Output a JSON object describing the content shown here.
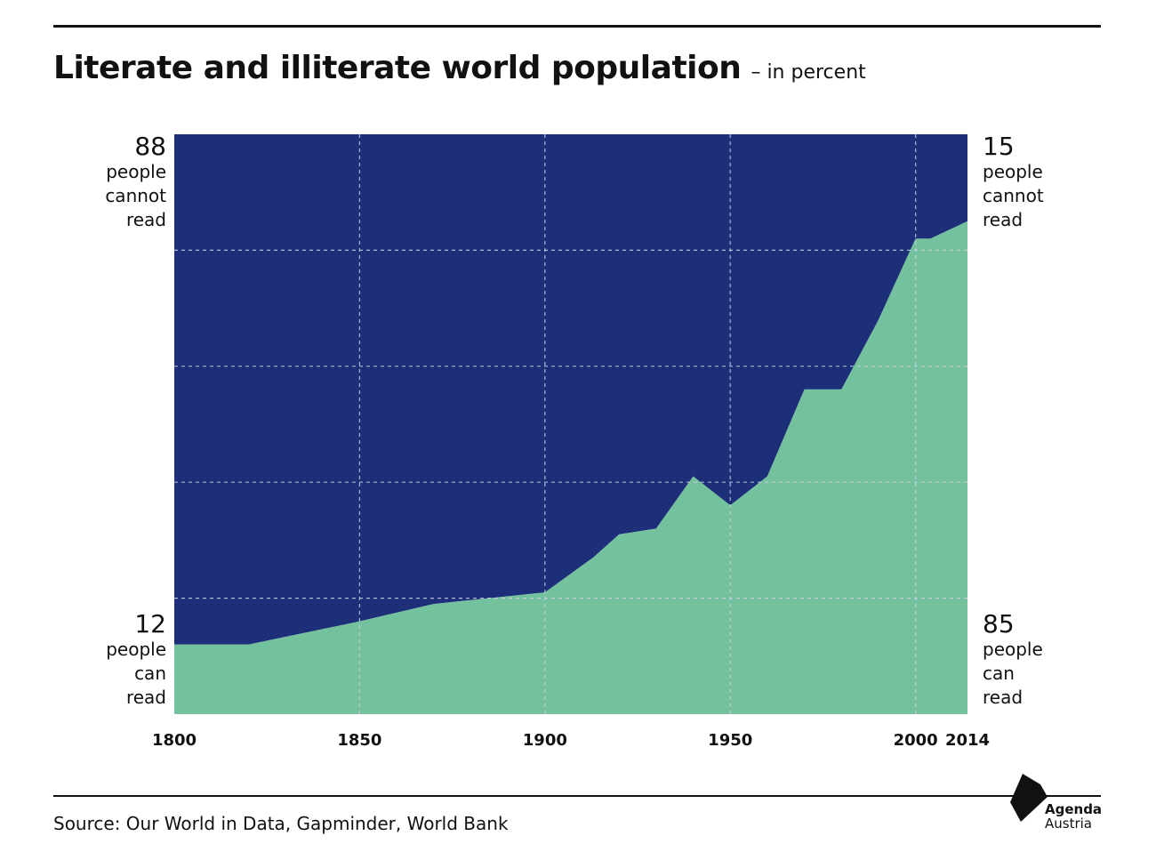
{
  "header": {
    "title": "Literate and illiterate world population",
    "subtitle": "– in percent"
  },
  "labels": {
    "left_top": {
      "value": "88",
      "line1": "people",
      "line2": "cannot",
      "line3": "read"
    },
    "left_bottom": {
      "value": "12",
      "line1": "people",
      "line2": "can",
      "line3": "read"
    },
    "right_top": {
      "value": "15",
      "line1": "people",
      "line2": "cannot",
      "line3": "read"
    },
    "right_bottom": {
      "value": "85",
      "line1": "people",
      "line2": "can",
      "line3": "read"
    }
  },
  "footer": {
    "source": "Source: Our World in Data, Gapminder, World Bank",
    "logo_line1": "Agenda",
    "logo_line2": "Austria"
  },
  "colors": {
    "illiterate": "#1e2f7a",
    "literate": "#74c19d",
    "grid": "#c9cfe0"
  },
  "chart_data": {
    "type": "area",
    "title": "Literate and illiterate world population",
    "subtitle": "– in percent",
    "xlim": [
      1800,
      2014
    ],
    "ylim": [
      0,
      100
    ],
    "x_ticks": [
      1800,
      1850,
      1900,
      1950,
      2000,
      2014
    ],
    "grid": true,
    "series": [
      {
        "x": [
          1800,
          1820,
          1850,
          1870,
          1900,
          1913,
          1920,
          1930,
          1940,
          1950,
          1960,
          1970,
          1980,
          1990,
          2000,
          2004,
          2014
        ],
        "values": [
          12,
          12,
          16,
          19,
          21,
          27,
          31,
          32,
          41,
          36,
          41,
          56,
          56,
          68,
          82,
          82,
          85
        ]
      },
      {
        "x": [
          1800,
          1820,
          1850,
          1870,
          1900,
          1913,
          1920,
          1930,
          1940,
          1950,
          1960,
          1970,
          1980,
          1990,
          2000,
          2004,
          2014
        ],
        "values": [
          88,
          88,
          84,
          81,
          79,
          73,
          69,
          68,
          59,
          64,
          59,
          44,
          44,
          32,
          18,
          18,
          15
        ]
      }
    ]
  }
}
